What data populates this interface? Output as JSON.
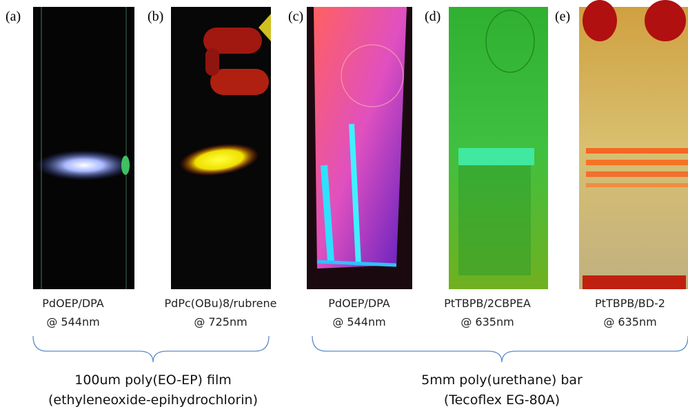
{
  "panels": [
    {
      "label": "(a)",
      "caption": [
        "PdOEP/DPA",
        "@ 544nm"
      ]
    },
    {
      "label": "(b)",
      "caption": [
        "PdPc(OBu)8/rubrene",
        "@ 725nm"
      ]
    },
    {
      "label": "(c)",
      "caption": [
        "PdOEP/DPA",
        "@ 544nm"
      ]
    },
    {
      "label": "(d)",
      "caption": [
        "PtTBPB/2CBPEA",
        "@ 635nm"
      ]
    },
    {
      "label": "(e)",
      "caption": [
        "PtTBPB/BD-2",
        "@ 635nm"
      ]
    }
  ],
  "groups": [
    {
      "lines": [
        "100um poly(EO-EP) film",
        "(ethyleneoxide-epihydrochlorin)"
      ]
    },
    {
      "lines": [
        "5mm poly(urethane) bar",
        "(Tecoflex EG-80A)"
      ]
    }
  ]
}
